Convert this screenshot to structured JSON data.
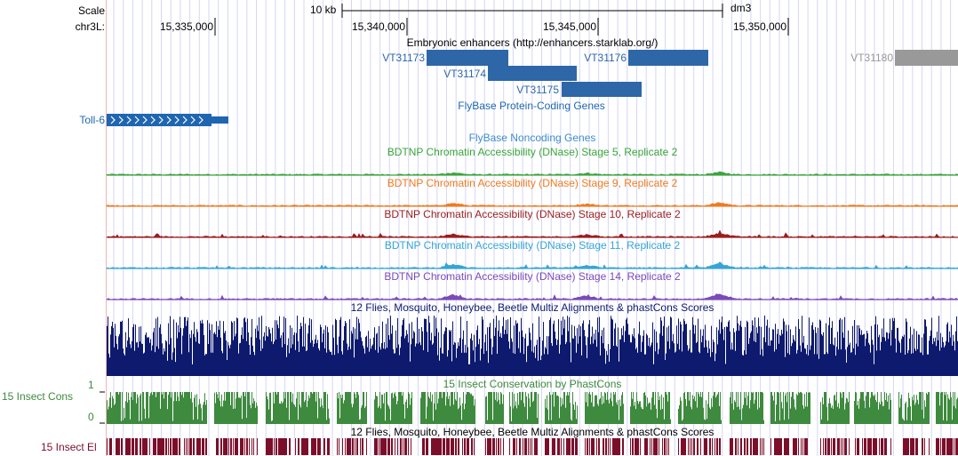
{
  "ruler": {
    "scale_label": "Scale",
    "chrom_label": "chr3L:",
    "scale_bar_label": "10 kb",
    "assembly": "dm3",
    "positions": [
      "15,335,000",
      "15,340,000",
      "15,345,000",
      "15,350,000"
    ]
  },
  "tracks": {
    "enhancers": {
      "title": "Embryonic enhancers (http://enhancers.starklab.org/)",
      "items": [
        "VT31173",
        "VT31174",
        "VT31175",
        "VT31176",
        "VT31180"
      ],
      "color": "#2e67a8",
      "gray_color": "#999999"
    },
    "coding_genes": {
      "title": "FlyBase Protein-Coding Genes",
      "gene": "Toll-6",
      "color": "#1f66b0"
    },
    "noncoding_genes": {
      "title": "FlyBase Noncoding Genes",
      "color": "#3c8cd0"
    },
    "dnase": [
      {
        "title": "BDTNP Chromatin Accessibility (DNase) Stage 5, Replicate 2",
        "color": "#3aa53a"
      },
      {
        "title": "BDTNP Chromatin Accessibility (DNase) Stage 9, Replicate 2",
        "color": "#f07a20"
      },
      {
        "title": "BDTNP Chromatin Accessibility (DNase) Stage 10, Replicate 2",
        "color": "#9a1d1d"
      },
      {
        "title": "BDTNP Chromatin Accessibility (DNase) Stage 11, Replicate 2",
        "color": "#35a5d6"
      },
      {
        "title": "BDTNP Chromatin Accessibility (DNase) Stage 14, Replicate 2",
        "color": "#7a4ab8"
      }
    ],
    "multiz": {
      "title": "12 Flies, Mosquito, Honeybee, Beetle Multiz Alignments & phastCons Scores",
      "color": "#0d1a6e"
    },
    "cons": {
      "title": "15 Insect Conservation by PhastCons",
      "side_label": "15 Insect Cons",
      "ymax": "1",
      "ymin": "0",
      "color": "#3e8a3e"
    },
    "elements": {
      "title": "12 Flies, Mosquito, Honeybee, Beetle Multiz Alignments & phastCons Scores",
      "side_label": "15 Insect El",
      "color": "#7b0f2a"
    }
  }
}
